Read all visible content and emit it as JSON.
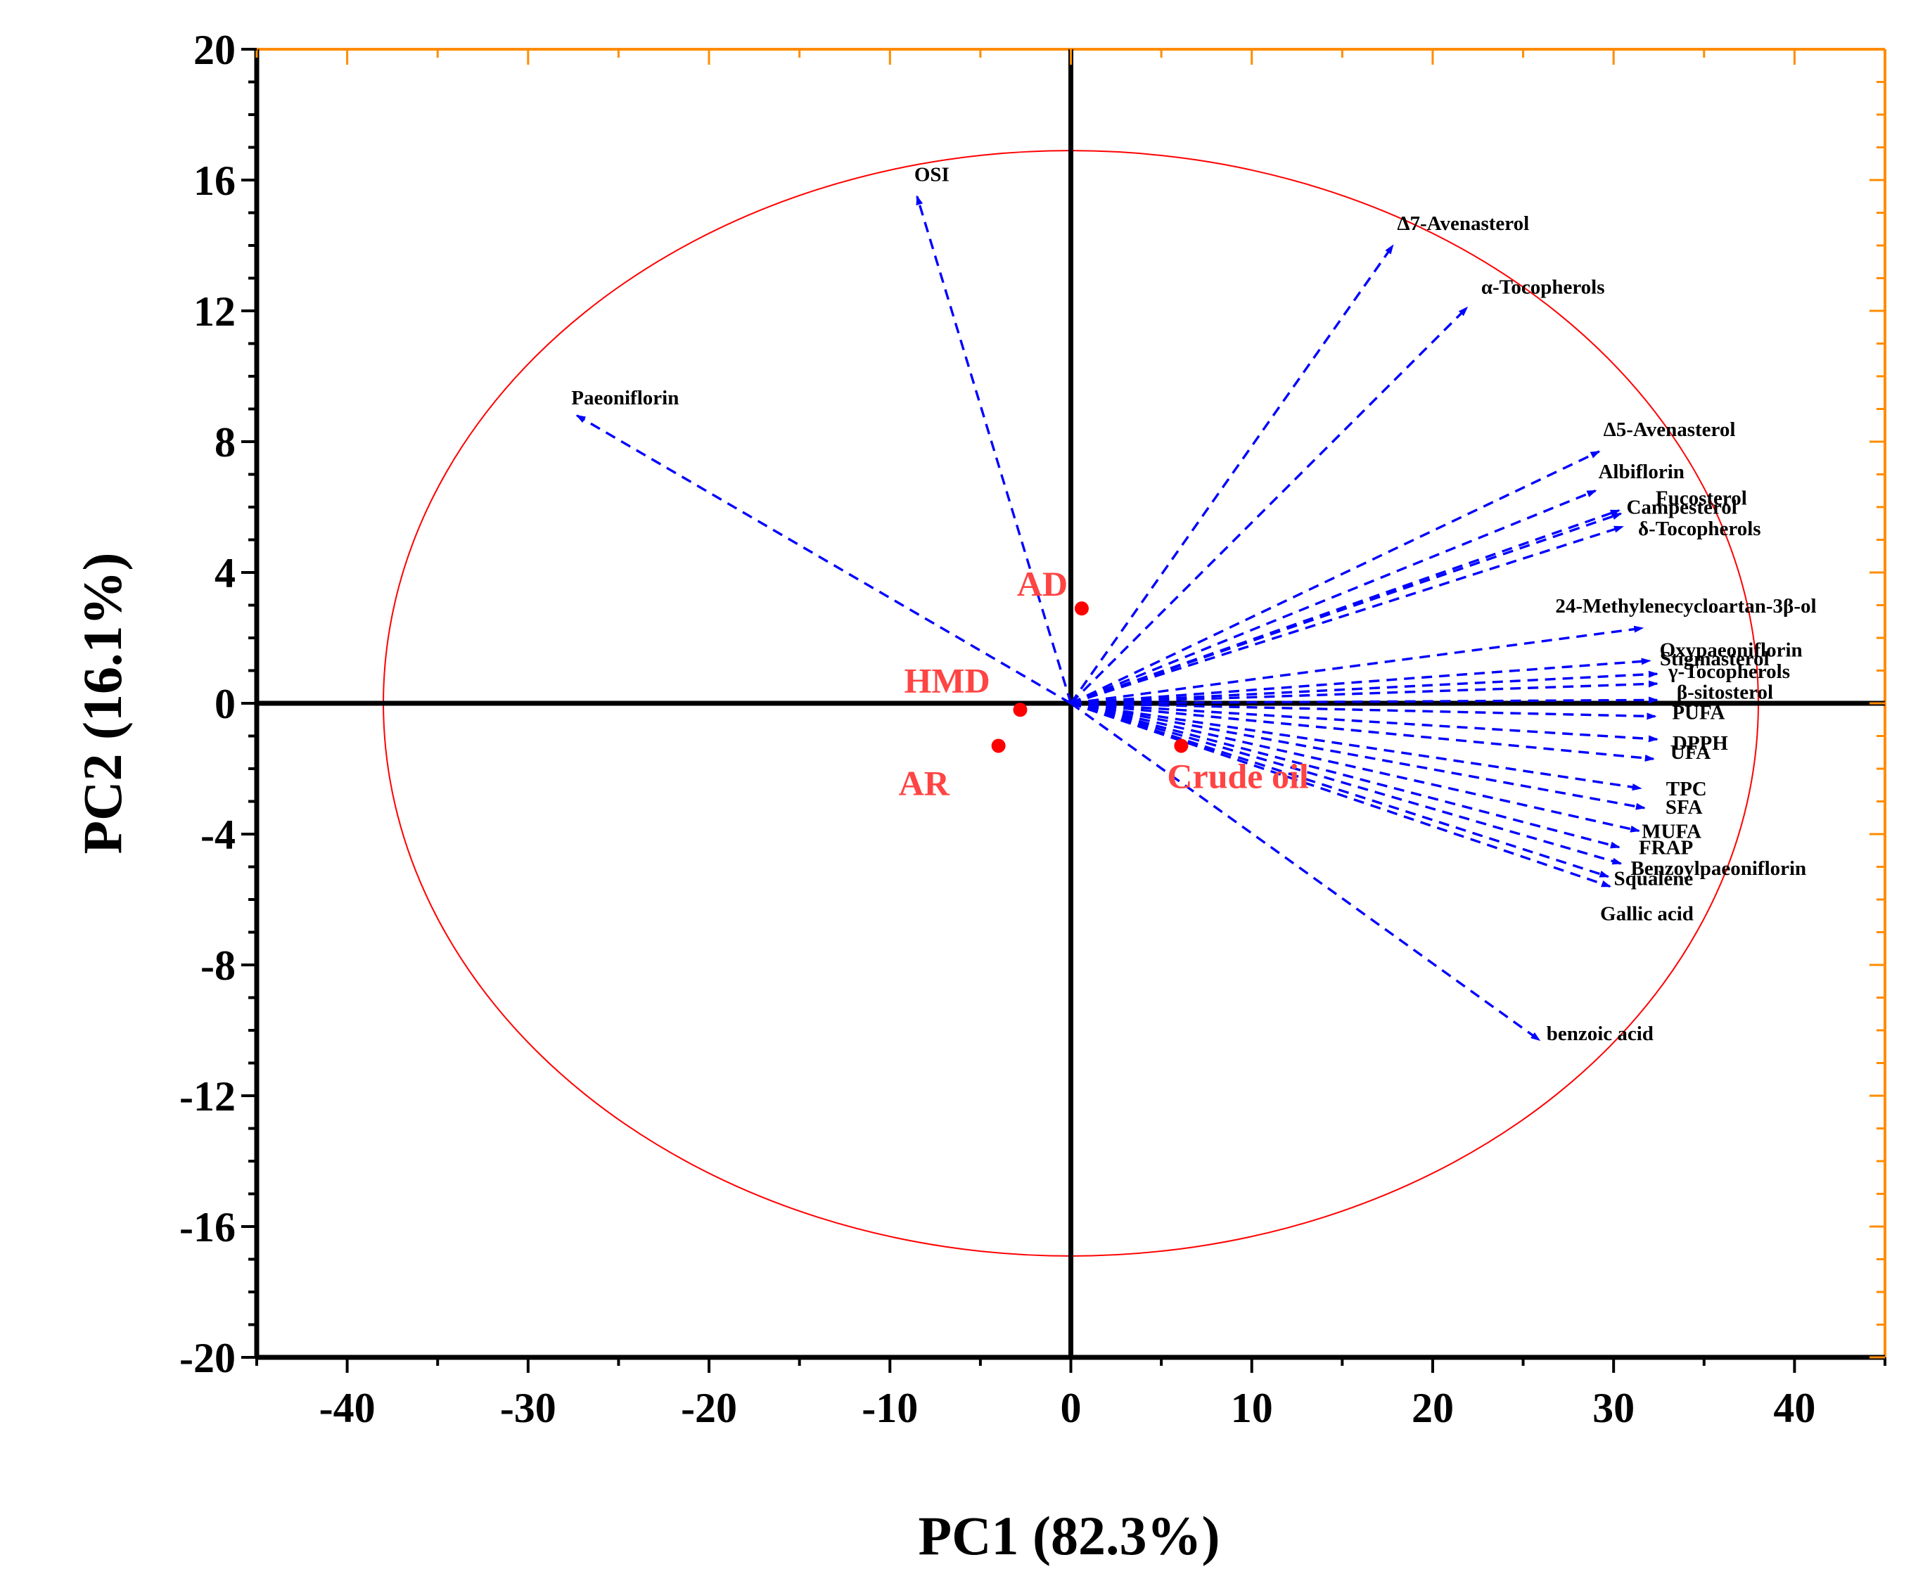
{
  "chart_data": {
    "type": "scatter",
    "subtype": "pca-biplot",
    "title": "",
    "xlabel": "PC1 (82.3%)",
    "ylabel": "PC2 (16.1%)",
    "xlim": [
      -45,
      45
    ],
    "ylim": [
      -20,
      20
    ],
    "x_ticks": [
      -40,
      -30,
      -20,
      -10,
      0,
      10,
      20,
      30,
      40
    ],
    "y_ticks": [
      -20,
      -16,
      -12,
      -8,
      -4,
      0,
      4,
      8,
      12,
      16,
      20
    ],
    "grid": false,
    "colors": {
      "axes": "#000000",
      "top_right_axes": "#ff8c00",
      "ellipse": "#ff0000",
      "loadings": "#0000ff",
      "scores": "#ff0000",
      "score_labels": "#ff4444"
    },
    "confidence_ellipse": {
      "center": [
        0,
        0
      ],
      "rx": 38,
      "ry": 16.9
    },
    "scores": [
      {
        "name": "AD",
        "x": 0.6,
        "y": 2.9
      },
      {
        "name": "HMD",
        "x": -2.8,
        "y": -0.2
      },
      {
        "name": "AR",
        "x": -4.0,
        "y": -1.3
      },
      {
        "name": "Crude oil",
        "x": 6.1,
        "y": -1.3
      }
    ],
    "loadings": [
      {
        "name": "OSI",
        "x": -8.5,
        "y": 15.5
      },
      {
        "name": "Paeoniflorin",
        "x": -27.3,
        "y": 8.8
      },
      {
        "name": "Δ7-Avenasterol",
        "x": 17.8,
        "y": 14.0
      },
      {
        "name": "α-Tocopherols",
        "x": 21.9,
        "y": 12.1
      },
      {
        "name": "Δ5-Avenasterol",
        "x": 29.2,
        "y": 7.7
      },
      {
        "name": "Albiflorin",
        "x": 29.0,
        "y": 6.5
      },
      {
        "name": "Fucosterol",
        "x": 30.3,
        "y": 5.9
      },
      {
        "name": "Campesterol",
        "x": 30.4,
        "y": 5.8
      },
      {
        "name": "δ-Tocopherols",
        "x": 30.5,
        "y": 5.4
      },
      {
        "name": "24-Methylenecycloartan-3β-ol",
        "x": 31.6,
        "y": 2.3
      },
      {
        "name": "Oxypaeoniflorin",
        "x": 32.0,
        "y": 1.3
      },
      {
        "name": "Stigmasterol",
        "x": 32.4,
        "y": 0.9
      },
      {
        "name": "γ-Tocopherols",
        "x": 32.4,
        "y": 0.6
      },
      {
        "name": "β-sitosterol",
        "x": 32.4,
        "y": 0.1
      },
      {
        "name": "PUFA",
        "x": 32.3,
        "y": -0.4
      },
      {
        "name": "DPPH",
        "x": 32.4,
        "y": -1.1
      },
      {
        "name": "UFA",
        "x": 32.2,
        "y": -1.7
      },
      {
        "name": "TPC",
        "x": 31.5,
        "y": -2.6
      },
      {
        "name": "SFA",
        "x": 31.7,
        "y": -3.2
      },
      {
        "name": "MUFA",
        "x": 31.4,
        "y": -3.9
      },
      {
        "name": "FRAP",
        "x": 30.3,
        "y": -4.4
      },
      {
        "name": "Benzoylpaeoniflorin",
        "x": 30.4,
        "y": -4.9
      },
      {
        "name": "Squalene",
        "x": 29.7,
        "y": -5.3
      },
      {
        "name": "Gallic acid",
        "x": 29.8,
        "y": -5.6
      },
      {
        "name": "benzoic acid",
        "x": 25.9,
        "y": -10.3
      }
    ]
  }
}
